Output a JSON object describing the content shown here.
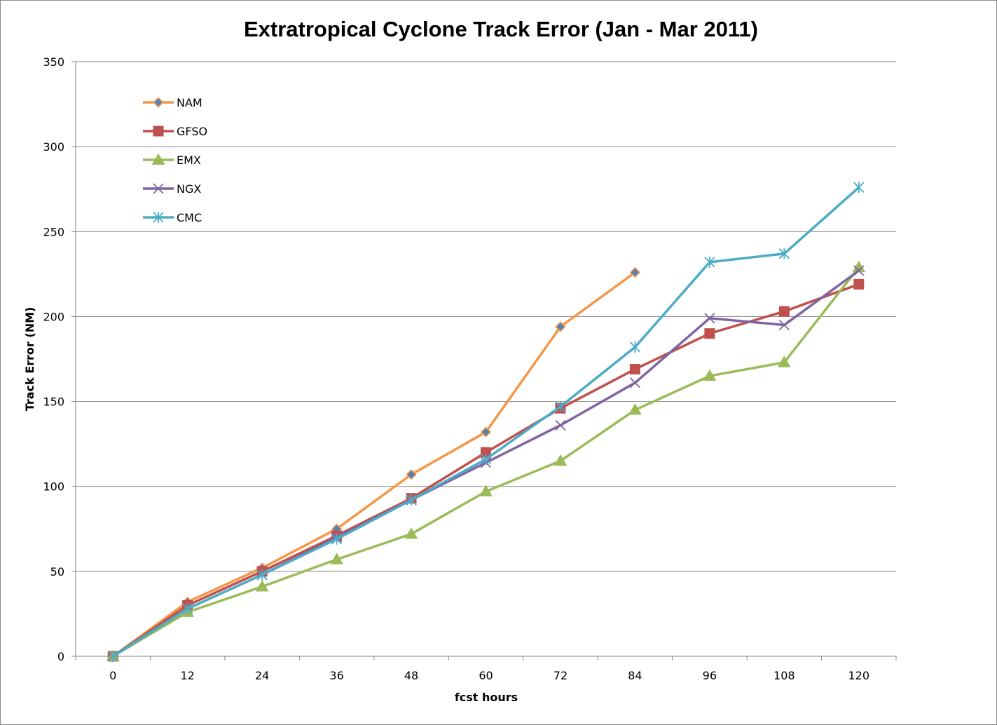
{
  "chart_data": {
    "type": "line",
    "title": "Extratropical Cyclone Track Error (Jan - Mar 2011)",
    "xlabel": "fcst hours",
    "ylabel": "Track Error  (NM)",
    "categories": [
      "0",
      "12",
      "24",
      "36",
      "48",
      "60",
      "72",
      "84",
      "96",
      "108",
      "120"
    ],
    "yticks": [
      "0",
      "50",
      "100",
      "150",
      "200",
      "250",
      "300",
      "350"
    ],
    "ylim": [
      0,
      350
    ],
    "grid": "horizontal",
    "legend_position": "top-left",
    "series": [
      {
        "name": "NAM",
        "color": "#F79646",
        "marker": "diamond",
        "marker_fill": "#4F81BD",
        "values": [
          0,
          32,
          52,
          75,
          107,
          132,
          194,
          226,
          null,
          null,
          null
        ]
      },
      {
        "name": "GFSO",
        "color": "#C0504D",
        "marker": "square",
        "marker_fill": "#C0504D",
        "values": [
          0,
          30,
          50,
          71,
          93,
          120,
          146,
          169,
          190,
          203,
          219
        ]
      },
      {
        "name": "EMX",
        "color": "#9BBB59",
        "marker": "triangle",
        "marker_fill": "#9BBB59",
        "values": [
          0,
          26,
          41,
          57,
          72,
          97,
          115,
          145,
          165,
          173,
          229
        ]
      },
      {
        "name": "NGX",
        "color": "#8064A2",
        "marker": "x",
        "marker_fill": "#8064A2",
        "values": [
          0,
          28,
          48,
          70,
          92,
          114,
          136,
          161,
          199,
          195,
          227
        ]
      },
      {
        "name": "CMC",
        "color": "#4BACC6",
        "marker": "star",
        "marker_fill": "#4BACC6",
        "values": [
          0,
          28,
          48,
          69,
          92,
          116,
          147,
          182,
          232,
          237,
          276
        ]
      }
    ]
  }
}
